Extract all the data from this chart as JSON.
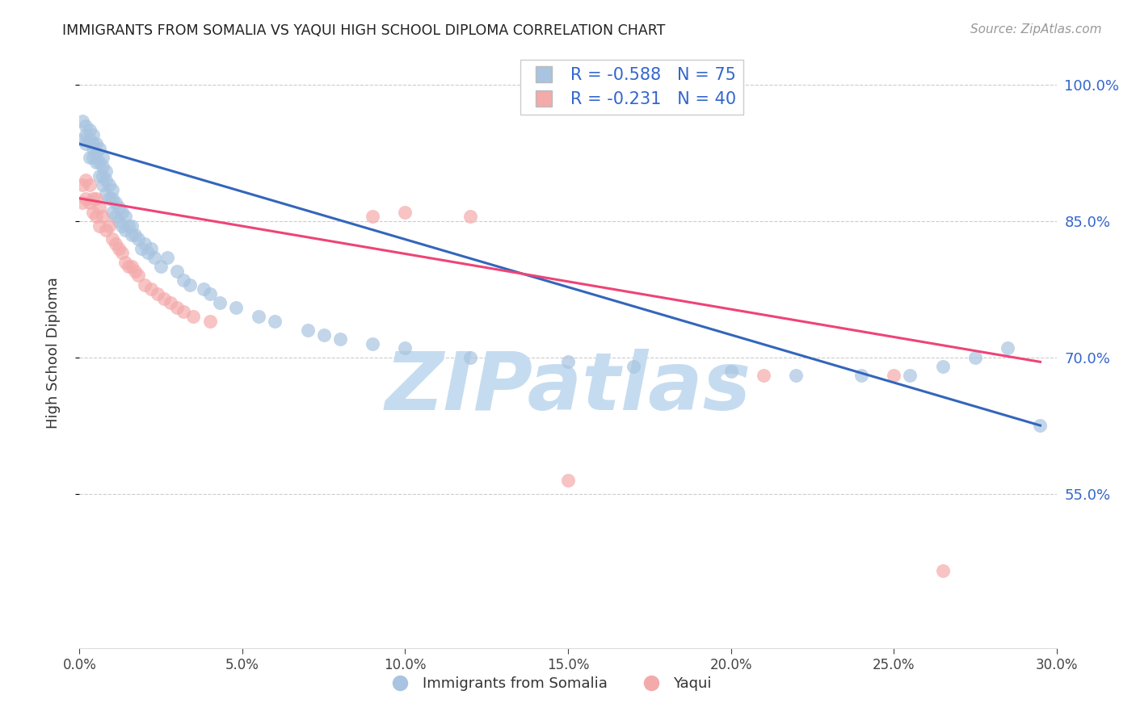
{
  "title": "IMMIGRANTS FROM SOMALIA VS YAQUI HIGH SCHOOL DIPLOMA CORRELATION CHART",
  "source": "Source: ZipAtlas.com",
  "ylabel": "High School Diploma",
  "legend_label_blue": "Immigrants from Somalia",
  "legend_label_pink": "Yaqui",
  "R_blue": -0.588,
  "N_blue": 75,
  "R_pink": -0.231,
  "N_pink": 40,
  "xlim": [
    0.0,
    0.3
  ],
  "ylim": [
    0.38,
    1.03
  ],
  "xticks": [
    0.0,
    0.05,
    0.1,
    0.15,
    0.2,
    0.25,
    0.3
  ],
  "yticks": [
    0.55,
    0.7,
    0.85,
    1.0
  ],
  "color_blue": "#A8C4E0",
  "color_pink": "#F4AAAA",
  "line_color_blue": "#3366BB",
  "line_color_pink": "#EE4477",
  "background": "#FFFFFF",
  "watermark": "ZIPatlas",
  "watermark_color": "#C5DCF0",
  "legend_text_color": "#3366CC",
  "legend_label_color": "#333333",
  "blue_x": [
    0.001,
    0.001,
    0.002,
    0.002,
    0.002,
    0.003,
    0.003,
    0.003,
    0.004,
    0.004,
    0.004,
    0.004,
    0.005,
    0.005,
    0.005,
    0.006,
    0.006,
    0.006,
    0.007,
    0.007,
    0.007,
    0.007,
    0.008,
    0.008,
    0.008,
    0.009,
    0.009,
    0.01,
    0.01,
    0.01,
    0.011,
    0.011,
    0.012,
    0.012,
    0.013,
    0.013,
    0.014,
    0.014,
    0.015,
    0.016,
    0.016,
    0.017,
    0.018,
    0.019,
    0.02,
    0.021,
    0.022,
    0.023,
    0.025,
    0.027,
    0.03,
    0.032,
    0.034,
    0.038,
    0.04,
    0.043,
    0.048,
    0.055,
    0.06,
    0.07,
    0.075,
    0.08,
    0.09,
    0.1,
    0.12,
    0.15,
    0.17,
    0.2,
    0.22,
    0.24,
    0.255,
    0.265,
    0.275,
    0.285,
    0.295
  ],
  "blue_y": [
    0.96,
    0.94,
    0.955,
    0.945,
    0.935,
    0.95,
    0.94,
    0.92,
    0.945,
    0.935,
    0.93,
    0.92,
    0.935,
    0.925,
    0.915,
    0.93,
    0.915,
    0.9,
    0.92,
    0.91,
    0.9,
    0.89,
    0.905,
    0.895,
    0.88,
    0.89,
    0.875,
    0.885,
    0.875,
    0.86,
    0.87,
    0.855,
    0.865,
    0.85,
    0.86,
    0.845,
    0.855,
    0.84,
    0.845,
    0.835,
    0.845,
    0.835,
    0.83,
    0.82,
    0.825,
    0.815,
    0.82,
    0.81,
    0.8,
    0.81,
    0.795,
    0.785,
    0.78,
    0.775,
    0.77,
    0.76,
    0.755,
    0.745,
    0.74,
    0.73,
    0.725,
    0.72,
    0.715,
    0.71,
    0.7,
    0.695,
    0.69,
    0.685,
    0.68,
    0.68,
    0.68,
    0.69,
    0.7,
    0.71,
    0.625
  ],
  "pink_x": [
    0.001,
    0.001,
    0.002,
    0.002,
    0.003,
    0.003,
    0.004,
    0.004,
    0.005,
    0.005,
    0.006,
    0.006,
    0.007,
    0.008,
    0.009,
    0.01,
    0.011,
    0.012,
    0.013,
    0.014,
    0.015,
    0.016,
    0.017,
    0.018,
    0.02,
    0.022,
    0.024,
    0.026,
    0.028,
    0.03,
    0.032,
    0.035,
    0.04,
    0.09,
    0.1,
    0.12,
    0.15,
    0.21,
    0.25,
    0.265
  ],
  "pink_y": [
    0.89,
    0.87,
    0.895,
    0.875,
    0.89,
    0.87,
    0.875,
    0.86,
    0.875,
    0.855,
    0.865,
    0.845,
    0.855,
    0.84,
    0.845,
    0.83,
    0.825,
    0.82,
    0.815,
    0.805,
    0.8,
    0.8,
    0.795,
    0.79,
    0.78,
    0.775,
    0.77,
    0.765,
    0.76,
    0.755,
    0.75,
    0.745,
    0.74,
    0.855,
    0.86,
    0.855,
    0.565,
    0.68,
    0.68,
    0.465
  ],
  "blue_line_x0": 0.0,
  "blue_line_y0": 0.935,
  "blue_line_x1": 0.295,
  "blue_line_y1": 0.625,
  "pink_line_x0": 0.0,
  "pink_line_y0": 0.875,
  "pink_line_x1": 0.295,
  "pink_line_y1": 0.695
}
